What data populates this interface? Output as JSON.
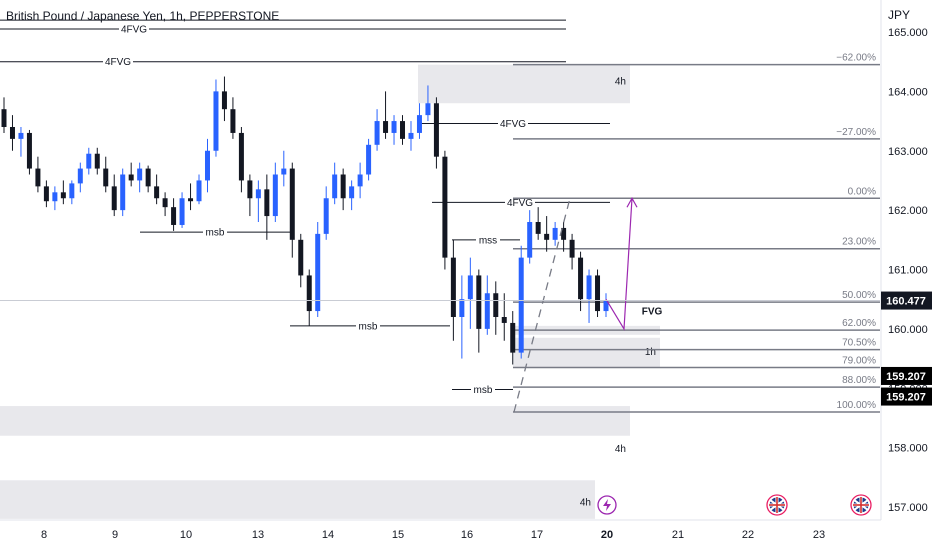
{
  "header": {
    "symbol_title": "British Pound / Japanese Yen, 1h, PEPPERSTONE",
    "currency": "JPY"
  },
  "chart_data": {
    "type": "candlestick",
    "title": "British Pound / Japanese Yen, 1h, PEPPERSTONE",
    "ylabel": "JPY",
    "ylim": [
      156.85,
      165.15
    ],
    "y_ticks": [
      "157.000",
      "158.000",
      "159.000",
      "160.000",
      "161.000",
      "162.000",
      "163.000",
      "164.000",
      "165.000"
    ],
    "x_ticks": [
      "8",
      "9",
      "10",
      "13",
      "14",
      "15",
      "16",
      "17",
      "20",
      "21",
      "22",
      "23"
    ],
    "x_tick_highlight": "20",
    "grid": false,
    "price_tags": [
      {
        "label": "160.477",
        "value": 160.477,
        "color": "#131722"
      },
      {
        "label": "159.207",
        "value": 159.207,
        "color": "#000000"
      },
      {
        "label": "159.207",
        "value": 158.86,
        "color": "#000000"
      }
    ],
    "fib_levels": [
      {
        "label": "−62.00%",
        "value": 164.45
      },
      {
        "label": "−27.00%",
        "value": 163.2
      },
      {
        "label": "0.00%",
        "value": 162.2
      },
      {
        "label": "23.00%",
        "value": 161.35
      },
      {
        "label": "50.00%",
        "value": 160.45
      },
      {
        "label": "62.00%",
        "value": 159.98
      },
      {
        "label": "70.50%",
        "value": 159.65
      },
      {
        "label": "79.00%",
        "value": 159.35
      },
      {
        "label": "88.00%",
        "value": 159.02
      },
      {
        "label": "100.00%",
        "value": 158.6
      }
    ],
    "zones": [
      {
        "label": "4h",
        "x0": 15.45,
        "x1": 16.85,
        "y0": 163.8,
        "y1": 164.45
      },
      {
        "label": "",
        "x0": 16.85,
        "x1": 17.88,
        "y0": 159.9,
        "y1": 160.05
      },
      {
        "label": "1h",
        "x0": 16.85,
        "x1": 17.88,
        "y0": 159.35,
        "y1": 159.85
      },
      {
        "label": "4h",
        "x0": 7.45,
        "x1": 17.95,
        "y0": 158.2,
        "y1": 158.7
      },
      {
        "label": "4h",
        "x0": 7.45,
        "x1": 19.6,
        "y0": 156.8,
        "y1": 157.45
      }
    ],
    "level_lines": [
      {
        "label": "",
        "x0": 7.45,
        "x1": 19.75,
        "value": 165.2
      },
      {
        "label": "4FVG",
        "x0": 7.45,
        "x1": 19.75,
        "value": 165.05,
        "label_x": 9.2
      },
      {
        "label": "4FVG",
        "x0": 7.45,
        "x1": 19.75,
        "value": 164.5,
        "label_x": 9.0
      },
      {
        "label": "4FVG",
        "x0": 15.25,
        "x1": 17.6,
        "value": 163.46,
        "label_x": 16.55
      },
      {
        "label": "4FVG",
        "x0": 15.5,
        "x1": 17.6,
        "value": 162.13,
        "label_x": 16.75
      },
      {
        "label": "msb",
        "x0": 9.35,
        "x1": 13.1,
        "value": 161.63,
        "label_x": 11.5
      },
      {
        "label": "mss",
        "x0": 15.9,
        "x1": 16.95,
        "value": 161.5,
        "label_x": 16.55
      },
      {
        "label": "msb",
        "x0": 13.55,
        "x1": 15.65,
        "value": 160.05,
        "label_x": 14.6
      },
      {
        "label": "msb",
        "x0": 15.9,
        "x1": 16.85,
        "value": 158.98,
        "label_x": 16.3
      },
      {
        "label": "FVG",
        "x0": 17.9,
        "x1": 17.9,
        "value": 160.3,
        "label_x": 18.2
      }
    ],
    "projection": {
      "color": "#9c27b0",
      "points": [
        [
          17.6,
          160.5
        ],
        [
          17.85,
          160.03
        ],
        [
          18.05,
          162.2
        ]
      ]
    },
    "dashed_trend": {
      "color": "#787b86",
      "points": [
        [
          16.75,
          158.65
        ],
        [
          17.45,
          162.2
        ]
      ]
    },
    "event_icons": [
      {
        "name": "lightning",
        "x": 18.15
      },
      {
        "name": "uk-flag",
        "x": 21.2
      },
      {
        "name": "uk-flag",
        "x": 22.8
      }
    ],
    "series": [
      {
        "name": "",
        "color_up": "#2962ff",
        "color_down": "#131722",
        "ohlc": [
          [
            163.7,
            163.9,
            163.3,
            163.4
          ],
          [
            163.4,
            163.6,
            163.0,
            163.2
          ],
          [
            163.2,
            163.4,
            162.9,
            163.3
          ],
          [
            163.3,
            163.35,
            162.6,
            162.7
          ],
          [
            162.7,
            162.9,
            162.3,
            162.4
          ],
          [
            162.4,
            162.5,
            162.05,
            162.15
          ],
          [
            162.15,
            162.4,
            162.0,
            162.3
          ],
          [
            162.3,
            162.5,
            162.1,
            162.2
          ],
          [
            162.2,
            162.5,
            162.1,
            162.45
          ],
          [
            162.45,
            162.8,
            162.3,
            162.7
          ],
          [
            162.7,
            163.05,
            162.6,
            162.95
          ],
          [
            162.95,
            163.05,
            162.6,
            162.7
          ],
          [
            162.7,
            162.9,
            162.3,
            162.4
          ],
          [
            162.4,
            162.6,
            161.9,
            162.0
          ],
          [
            162.0,
            162.7,
            161.9,
            162.6
          ],
          [
            162.6,
            162.8,
            162.4,
            162.5
          ],
          [
            162.5,
            162.8,
            162.3,
            162.7
          ],
          [
            162.7,
            162.75,
            162.3,
            162.4
          ],
          [
            162.4,
            162.6,
            162.1,
            162.2
          ],
          [
            162.2,
            162.3,
            161.9,
            162.05
          ],
          [
            162.05,
            162.2,
            161.65,
            161.75
          ],
          [
            161.75,
            162.3,
            161.7,
            162.2
          ],
          [
            162.2,
            162.45,
            162.0,
            162.15
          ],
          [
            162.15,
            162.6,
            162.1,
            162.5
          ],
          [
            162.5,
            163.2,
            162.3,
            163.0
          ],
          [
            163.0,
            164.2,
            162.9,
            164.0
          ],
          [
            164.0,
            164.25,
            163.5,
            163.7
          ],
          [
            163.7,
            163.9,
            163.2,
            163.3
          ],
          [
            163.3,
            163.4,
            162.3,
            162.5
          ],
          [
            162.5,
            162.6,
            161.9,
            162.2
          ],
          [
            162.2,
            162.5,
            161.8,
            162.35
          ],
          [
            162.35,
            162.6,
            161.5,
            161.9
          ],
          [
            161.9,
            162.8,
            161.8,
            162.6
          ],
          [
            162.6,
            163.0,
            162.4,
            162.7
          ],
          [
            162.7,
            162.8,
            161.2,
            161.5
          ],
          [
            161.5,
            161.6,
            160.7,
            160.9
          ],
          [
            160.9,
            161.0,
            160.05,
            160.3
          ],
          [
            160.3,
            161.8,
            160.2,
            161.6
          ],
          [
            161.6,
            162.4,
            161.5,
            162.2
          ],
          [
            162.2,
            162.8,
            162.1,
            162.6
          ],
          [
            162.6,
            162.7,
            162.0,
            162.2
          ],
          [
            162.2,
            162.5,
            162.0,
            162.4
          ],
          [
            162.4,
            162.8,
            162.2,
            162.6
          ],
          [
            162.6,
            163.2,
            162.5,
            163.1
          ],
          [
            163.1,
            163.7,
            163.0,
            163.5
          ],
          [
            163.5,
            164.0,
            163.2,
            163.3
          ],
          [
            163.3,
            163.6,
            163.1,
            163.5
          ],
          [
            163.5,
            163.6,
            163.1,
            163.2
          ],
          [
            163.2,
            163.5,
            163.0,
            163.3
          ],
          [
            163.3,
            163.8,
            163.2,
            163.6
          ],
          [
            163.6,
            164.1,
            163.5,
            163.8
          ],
          [
            163.8,
            163.9,
            162.7,
            162.9
          ],
          [
            162.9,
            163.0,
            161.0,
            161.2
          ],
          [
            161.2,
            161.5,
            159.8,
            160.2
          ],
          [
            160.2,
            160.9,
            159.5,
            160.5
          ],
          [
            160.5,
            161.2,
            160.0,
            160.9
          ],
          [
            160.9,
            161.0,
            159.6,
            160.0
          ],
          [
            160.0,
            160.9,
            159.9,
            160.6
          ],
          [
            160.6,
            160.8,
            159.9,
            160.2
          ],
          [
            160.2,
            160.6,
            159.8,
            160.1
          ],
          [
            160.1,
            160.3,
            159.4,
            159.6
          ],
          [
            159.6,
            161.4,
            159.5,
            161.2
          ],
          [
            161.2,
            162.0,
            161.1,
            161.8
          ],
          [
            161.8,
            162.05,
            161.5,
            161.6
          ],
          [
            161.6,
            161.9,
            161.3,
            161.5
          ],
          [
            161.5,
            161.8,
            161.4,
            161.7
          ],
          [
            161.7,
            161.8,
            161.3,
            161.5
          ],
          [
            161.5,
            161.6,
            161.0,
            161.2
          ],
          [
            161.2,
            161.3,
            160.3,
            160.5
          ],
          [
            160.5,
            161.0,
            160.1,
            160.9
          ],
          [
            160.9,
            161.0,
            160.2,
            160.3
          ],
          [
            160.3,
            160.6,
            160.2,
            160.48
          ]
        ]
      }
    ]
  }
}
